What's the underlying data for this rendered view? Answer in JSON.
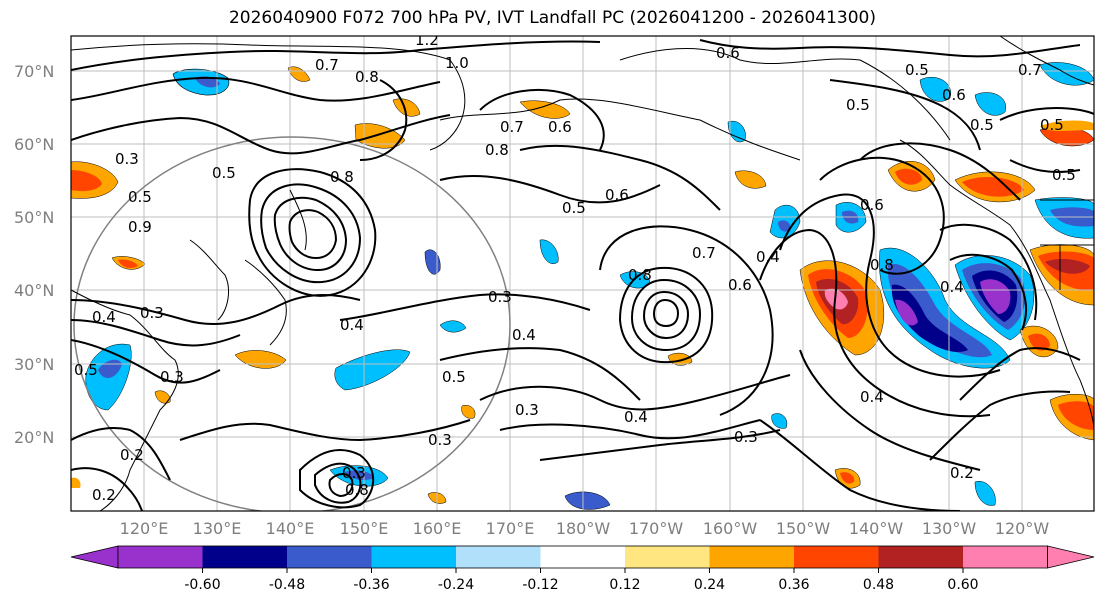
{
  "chart_data": {
    "type": "contour-map",
    "title": "2026040900 F072 700 hPa PV, IVT Landfall PC (2026041200 - 2026041300)",
    "lat_ticks": [
      "70°N",
      "60°N",
      "50°N",
      "40°N",
      "30°N",
      "20°N"
    ],
    "lon_ticks": [
      "120°E",
      "130°E",
      "140°E",
      "150°E",
      "160°E",
      "170°E",
      "180°W",
      "170°W",
      "160°W",
      "150°W",
      "140°W",
      "130°W",
      "120°W"
    ],
    "colorbar": {
      "colors": [
        "#9932cc",
        "#00008b",
        "#3a5bcc",
        "#00bfff",
        "#b0e0fa",
        "#ffffff",
        "#ffe680",
        "#ffa500",
        "#ff4500",
        "#b22222",
        "#ff80b0"
      ],
      "levels": [
        "-0.60",
        "-0.48",
        "-0.36",
        "-0.24",
        "-0.12",
        "0.12",
        "0.24",
        "0.36",
        "0.48",
        "0.60"
      ],
      "extend": "both"
    },
    "contour_labels": [
      "1.2",
      "1.0",
      "0.6",
      "0.7",
      "0.8",
      "0.5",
      "0.5",
      "0.6",
      "0.5",
      "0.5",
      "0.7",
      "0.6",
      "0.8",
      "0.5",
      "0.6",
      "0.5",
      "0.8",
      "0.8",
      "0.7",
      "0.6",
      "0.4",
      "0.6",
      "0.8",
      "0.9",
      "0.3",
      "0.5",
      "0.2",
      "0.3",
      "0.4",
      "0.3",
      "0.3",
      "0.4",
      "0.3",
      "0.4",
      "0.5",
      "0.3",
      "0.4",
      "0.5",
      "0.4",
      "0.3",
      "0.2",
      "0.4",
      "0.2",
      "0.3",
      "0.8",
      "0.7",
      "0.5"
    ]
  }
}
